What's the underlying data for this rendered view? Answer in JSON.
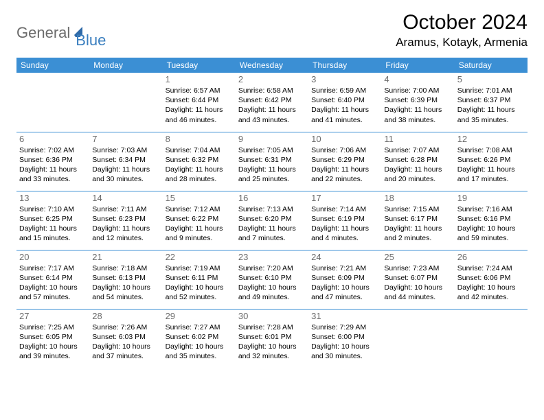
{
  "logo": {
    "part1": "General",
    "part2": "Blue"
  },
  "title": "October 2024",
  "location": "Aramus, Kotayk, Armenia",
  "colors": {
    "header_bg": "#3b8fd4",
    "header_text": "#ffffff",
    "row_border": "#3b8fd4",
    "daynum": "#6b6b6b",
    "logo_gray": "#6b6b6b",
    "logo_blue": "#3b7fbf",
    "body_text": "#000000",
    "background": "#ffffff"
  },
  "typography": {
    "title_fontsize": 30,
    "location_fontsize": 17,
    "dayhead_fontsize": 12,
    "daynum_fontsize": 13,
    "dayinfo_fontsize": 10.5
  },
  "weekdays": [
    "Sunday",
    "Monday",
    "Tuesday",
    "Wednesday",
    "Thursday",
    "Friday",
    "Saturday"
  ],
  "weeks": [
    [
      null,
      null,
      {
        "n": "1",
        "sr": "6:57 AM",
        "ss": "6:44 PM",
        "dl": "11 hours and 46 minutes."
      },
      {
        "n": "2",
        "sr": "6:58 AM",
        "ss": "6:42 PM",
        "dl": "11 hours and 43 minutes."
      },
      {
        "n": "3",
        "sr": "6:59 AM",
        "ss": "6:40 PM",
        "dl": "11 hours and 41 minutes."
      },
      {
        "n": "4",
        "sr": "7:00 AM",
        "ss": "6:39 PM",
        "dl": "11 hours and 38 minutes."
      },
      {
        "n": "5",
        "sr": "7:01 AM",
        "ss": "6:37 PM",
        "dl": "11 hours and 35 minutes."
      }
    ],
    [
      {
        "n": "6",
        "sr": "7:02 AM",
        "ss": "6:36 PM",
        "dl": "11 hours and 33 minutes."
      },
      {
        "n": "7",
        "sr": "7:03 AM",
        "ss": "6:34 PM",
        "dl": "11 hours and 30 minutes."
      },
      {
        "n": "8",
        "sr": "7:04 AM",
        "ss": "6:32 PM",
        "dl": "11 hours and 28 minutes."
      },
      {
        "n": "9",
        "sr": "7:05 AM",
        "ss": "6:31 PM",
        "dl": "11 hours and 25 minutes."
      },
      {
        "n": "10",
        "sr": "7:06 AM",
        "ss": "6:29 PM",
        "dl": "11 hours and 22 minutes."
      },
      {
        "n": "11",
        "sr": "7:07 AM",
        "ss": "6:28 PM",
        "dl": "11 hours and 20 minutes."
      },
      {
        "n": "12",
        "sr": "7:08 AM",
        "ss": "6:26 PM",
        "dl": "11 hours and 17 minutes."
      }
    ],
    [
      {
        "n": "13",
        "sr": "7:10 AM",
        "ss": "6:25 PM",
        "dl": "11 hours and 15 minutes."
      },
      {
        "n": "14",
        "sr": "7:11 AM",
        "ss": "6:23 PM",
        "dl": "11 hours and 12 minutes."
      },
      {
        "n": "15",
        "sr": "7:12 AM",
        "ss": "6:22 PM",
        "dl": "11 hours and 9 minutes."
      },
      {
        "n": "16",
        "sr": "7:13 AM",
        "ss": "6:20 PM",
        "dl": "11 hours and 7 minutes."
      },
      {
        "n": "17",
        "sr": "7:14 AM",
        "ss": "6:19 PM",
        "dl": "11 hours and 4 minutes."
      },
      {
        "n": "18",
        "sr": "7:15 AM",
        "ss": "6:17 PM",
        "dl": "11 hours and 2 minutes."
      },
      {
        "n": "19",
        "sr": "7:16 AM",
        "ss": "6:16 PM",
        "dl": "10 hours and 59 minutes."
      }
    ],
    [
      {
        "n": "20",
        "sr": "7:17 AM",
        "ss": "6:14 PM",
        "dl": "10 hours and 57 minutes."
      },
      {
        "n": "21",
        "sr": "7:18 AM",
        "ss": "6:13 PM",
        "dl": "10 hours and 54 minutes."
      },
      {
        "n": "22",
        "sr": "7:19 AM",
        "ss": "6:11 PM",
        "dl": "10 hours and 52 minutes."
      },
      {
        "n": "23",
        "sr": "7:20 AM",
        "ss": "6:10 PM",
        "dl": "10 hours and 49 minutes."
      },
      {
        "n": "24",
        "sr": "7:21 AM",
        "ss": "6:09 PM",
        "dl": "10 hours and 47 minutes."
      },
      {
        "n": "25",
        "sr": "7:23 AM",
        "ss": "6:07 PM",
        "dl": "10 hours and 44 minutes."
      },
      {
        "n": "26",
        "sr": "7:24 AM",
        "ss": "6:06 PM",
        "dl": "10 hours and 42 minutes."
      }
    ],
    [
      {
        "n": "27",
        "sr": "7:25 AM",
        "ss": "6:05 PM",
        "dl": "10 hours and 39 minutes."
      },
      {
        "n": "28",
        "sr": "7:26 AM",
        "ss": "6:03 PM",
        "dl": "10 hours and 37 minutes."
      },
      {
        "n": "29",
        "sr": "7:27 AM",
        "ss": "6:02 PM",
        "dl": "10 hours and 35 minutes."
      },
      {
        "n": "30",
        "sr": "7:28 AM",
        "ss": "6:01 PM",
        "dl": "10 hours and 32 minutes."
      },
      {
        "n": "31",
        "sr": "7:29 AM",
        "ss": "6:00 PM",
        "dl": "10 hours and 30 minutes."
      },
      null,
      null
    ]
  ],
  "labels": {
    "sunrise": "Sunrise:",
    "sunset": "Sunset:",
    "daylight": "Daylight:"
  }
}
